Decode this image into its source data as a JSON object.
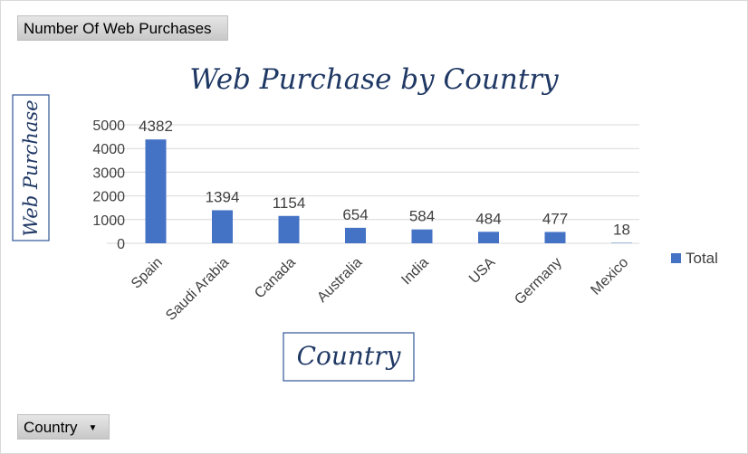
{
  "pivot": {
    "value_field": "Number Of Web Purchases",
    "axis_field": "Country",
    "axis_dropdown_icon": "dropdown-arrow-icon"
  },
  "colors": {
    "bar": "#4472c4",
    "title": "#1f3864",
    "grid": "#d9d9d9",
    "axis_text": "#404040"
  },
  "chart_data": {
    "type": "bar",
    "title": "Web Purchase by Country",
    "xlabel": "Country",
    "ylabel": "Web Purchase",
    "categories": [
      "Spain",
      "Saudi Arabia",
      "Canada",
      "Australia",
      "India",
      "USA",
      "Germany",
      "Mexico"
    ],
    "series": [
      {
        "name": "Total",
        "values": [
          4382,
          1394,
          1154,
          654,
          584,
          484,
          477,
          18
        ]
      }
    ],
    "ylim": [
      0,
      5000
    ],
    "yticks": [
      0,
      1000,
      2000,
      3000,
      4000,
      5000
    ],
    "grid": true,
    "legend_position": "right",
    "data_labels": true
  }
}
